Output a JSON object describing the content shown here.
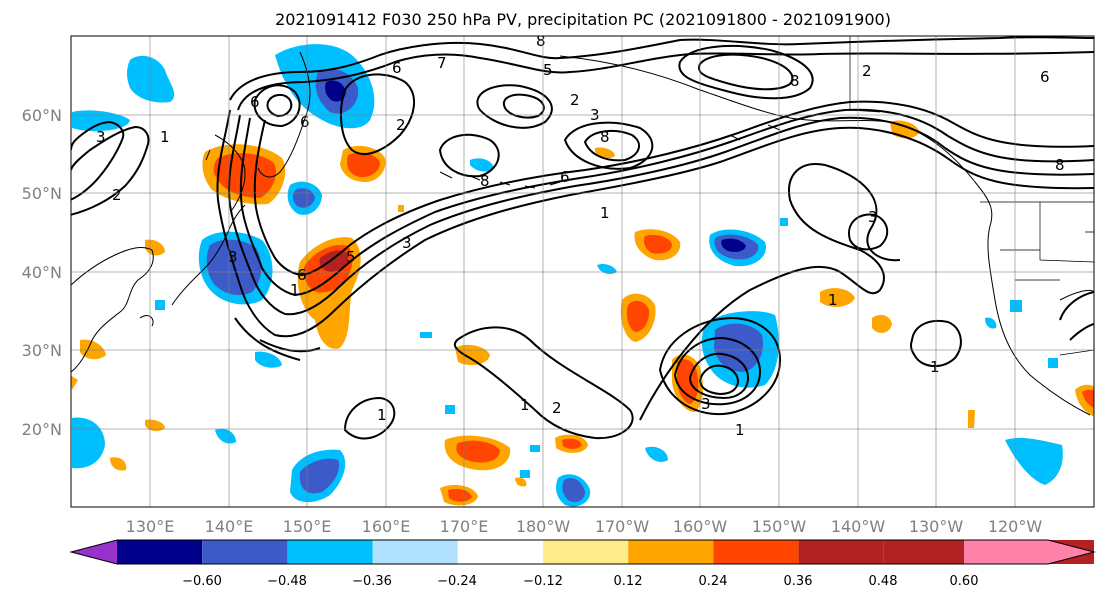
{
  "title": "2021091412 F030 250 hPa PV, precipitation PC (2021091800 - 2021091900)",
  "map": {
    "lon_labels": [
      "130°E",
      "140°E",
      "150°E",
      "160°E",
      "170°E",
      "180°W",
      "170°W",
      "160°W",
      "150°W",
      "140°W",
      "130°W",
      "120°W"
    ],
    "lat_labels": [
      "20°N",
      "30°N",
      "40°N",
      "50°N",
      "60°N"
    ],
    "grid": true,
    "contour_color": "#000000",
    "contour_labels": [
      {
        "text": "8"
      },
      {
        "text": "6"
      },
      {
        "text": "7"
      },
      {
        "text": "5"
      },
      {
        "text": "2"
      },
      {
        "text": "6"
      },
      {
        "text": "3"
      },
      {
        "text": "1"
      },
      {
        "text": "2"
      },
      {
        "text": "3"
      },
      {
        "text": "8"
      },
      {
        "text": "6"
      },
      {
        "text": "1"
      },
      {
        "text": "3"
      },
      {
        "text": "1"
      },
      {
        "text": "1"
      },
      {
        "text": "2"
      },
      {
        "text": "3"
      },
      {
        "text": "1"
      },
      {
        "text": "6"
      },
      {
        "text": "8"
      },
      {
        "text": "8"
      },
      {
        "text": "2"
      },
      {
        "text": "6"
      },
      {
        "text": "8"
      },
      {
        "text": "3"
      },
      {
        "text": "1"
      },
      {
        "text": "1"
      },
      {
        "text": "5"
      },
      {
        "text": "6"
      },
      {
        "text": "2"
      },
      {
        "text": "3"
      },
      {
        "text": "1"
      }
    ]
  },
  "colorbar": {
    "ticks": [
      "−0.60",
      "−0.48",
      "−0.36",
      "−0.24",
      "−0.12",
      "0.12",
      "0.24",
      "0.36",
      "0.48",
      "0.60"
    ],
    "colors": [
      "#9932cc",
      "#00008b",
      "#3c5ac8",
      "#00bfff",
      "#b0e2ff",
      "#ffffff",
      "#ffec8b",
      "#ffa500",
      "#ff4500",
      "#b22222",
      "#ff82ab"
    ]
  }
}
